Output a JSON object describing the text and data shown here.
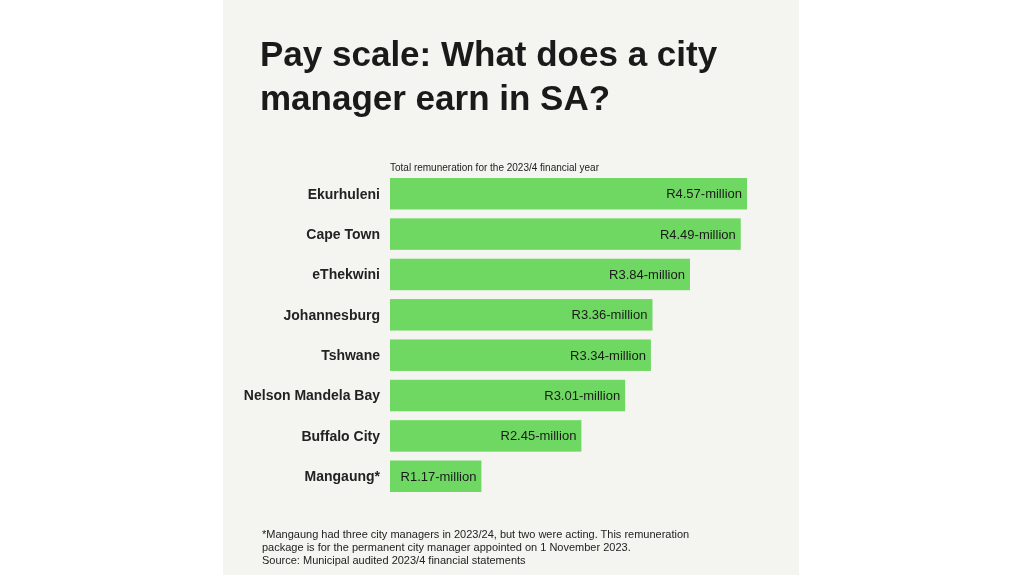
{
  "chart_data": {
    "type": "bar",
    "orientation": "horizontal",
    "title": "Pay scale: What does a city manager earn in SA?",
    "subtitle": "Total remuneration for the 2023/4 financial year",
    "categories": [
      "Ekurhuleni",
      "Cape Town",
      "eThekwini",
      "Johannesburg",
      "Tshwane",
      "Nelson Mandela Bay",
      "Buffalo City",
      "Mangaung*"
    ],
    "values": [
      4.57,
      4.49,
      3.84,
      3.36,
      3.34,
      3.01,
      2.45,
      1.17
    ],
    "value_labels": [
      "R4.57-million",
      "R4.49-million",
      "R3.84-million",
      "R3.36-million",
      "R3.34-million",
      "R3.01-million",
      "R2.45-million",
      "R1.17-million"
    ],
    "color": "#6fd862",
    "annotations": [
      "*Mangaung had three city managers in 2023/24, but two were acting. This remuneration package is for the permanent city manager appointed on 1 November 2023.",
      "Source: Municipal audited 2023/4 financial statements"
    ]
  }
}
